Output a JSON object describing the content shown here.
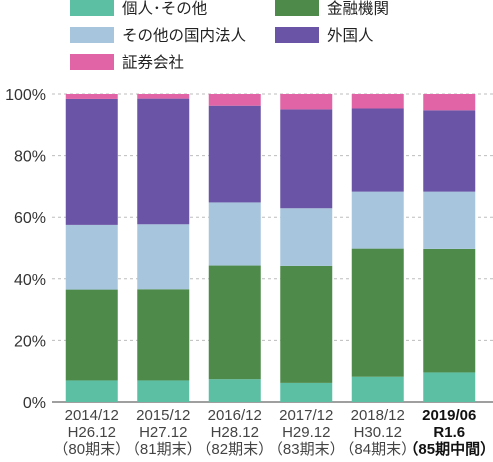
{
  "chart_data": {
    "type": "bar",
    "stacked": true,
    "categories": [
      [
        "2014/12",
        "H26.12",
        "（80期末）"
      ],
      [
        "2015/12",
        "H27.12",
        "（81期末）"
      ],
      [
        "2016/12",
        "H28.12",
        "（82期末）"
      ],
      [
        "2017/12",
        "H29.12",
        "（83期末）"
      ],
      [
        "2018/12",
        "H30.12",
        "（84期末）"
      ],
      [
        "2019/06",
        "R1.6",
        "（85期中間）"
      ]
    ],
    "bold_category_index": 5,
    "series": [
      {
        "name": "個人･その他",
        "color": "#5cbfa4",
        "values": [
          7.0,
          7.0,
          7.4,
          6.2,
          8.2,
          9.6
        ]
      },
      {
        "name": "金融機関",
        "color": "#4e8b4a",
        "values": [
          29.5,
          29.6,
          36.9,
          38.0,
          41.6,
          40.1
        ]
      },
      {
        "name": "その他の国内法人",
        "color": "#a7c6dd",
        "values": [
          21.0,
          21.1,
          20.5,
          18.7,
          18.5,
          18.6
        ]
      },
      {
        "name": "外国人",
        "color": "#6a54a5",
        "values": [
          40.9,
          40.8,
          31.4,
          32.1,
          27.0,
          26.4
        ]
      },
      {
        "name": "証券会社",
        "color": "#e164a6",
        "values": [
          1.6,
          1.5,
          3.8,
          5.0,
          4.7,
          5.3
        ]
      }
    ],
    "ylim": [
      0,
      100
    ],
    "yticks": [
      "0%",
      "20%",
      "40%",
      "60%",
      "80%",
      "100%"
    ],
    "grid": true,
    "legend_position": "top"
  }
}
